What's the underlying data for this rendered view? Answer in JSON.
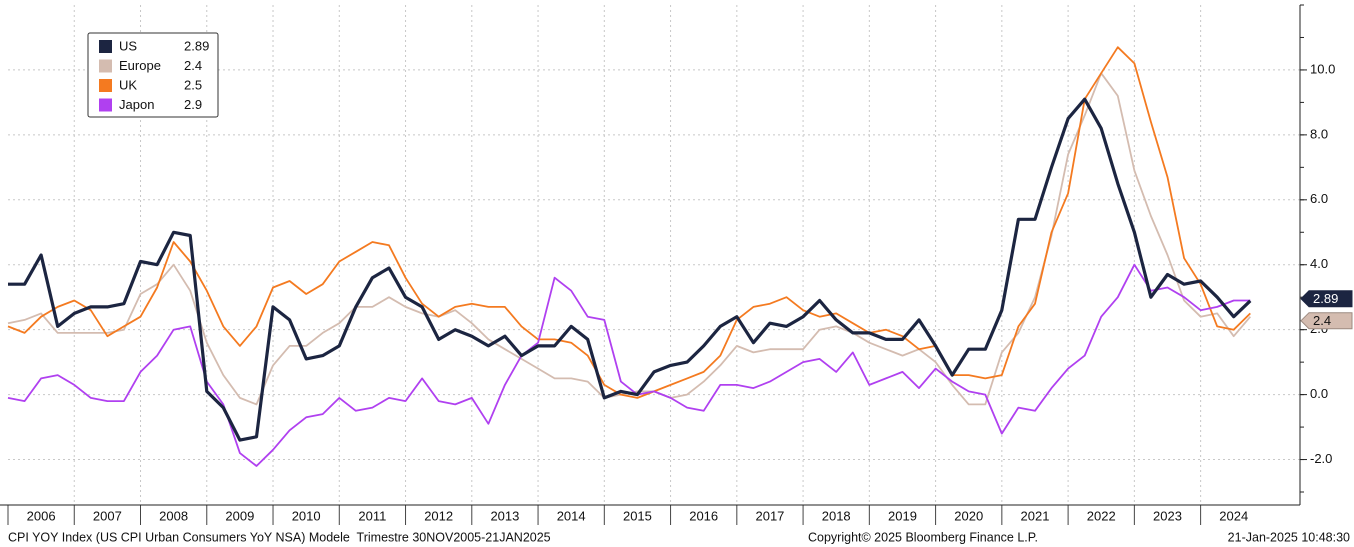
{
  "chart_data": {
    "type": "line",
    "x": [
      2006,
      2006.25,
      2006.5,
      2006.75,
      2007,
      2007.25,
      2007.5,
      2007.75,
      2008,
      2008.25,
      2008.5,
      2008.75,
      2009,
      2009.25,
      2009.5,
      2009.75,
      2010,
      2010.25,
      2010.5,
      2010.75,
      2011,
      2011.25,
      2011.5,
      2011.75,
      2012,
      2012.25,
      2012.5,
      2012.75,
      2013,
      2013.25,
      2013.5,
      2013.75,
      2014,
      2014.25,
      2014.5,
      2014.75,
      2015,
      2015.25,
      2015.5,
      2015.75,
      2016,
      2016.25,
      2016.5,
      2016.75,
      2017,
      2017.25,
      2017.5,
      2017.75,
      2018,
      2018.25,
      2018.5,
      2018.75,
      2019,
      2019.25,
      2019.5,
      2019.75,
      2020,
      2020.25,
      2020.5,
      2020.75,
      2021,
      2021.25,
      2021.5,
      2021.75,
      2022,
      2022.25,
      2022.5,
      2022.75,
      2023,
      2023.25,
      2023.5,
      2023.75,
      2024,
      2024.25,
      2024.5,
      2024.75
    ],
    "series": [
      {
        "name": "US",
        "latest": "2.89",
        "color": "#1c2541",
        "width": 3.2,
        "values": [
          3.4,
          3.4,
          4.3,
          2.1,
          2.5,
          2.7,
          2.7,
          2.8,
          4.1,
          4.0,
          5.0,
          4.9,
          0.1,
          -0.4,
          -1.4,
          -1.3,
          2.7,
          2.3,
          1.1,
          1.2,
          1.5,
          2.7,
          3.6,
          3.9,
          3.0,
          2.7,
          1.7,
          2.0,
          1.8,
          1.5,
          1.8,
          1.2,
          1.5,
          1.5,
          2.1,
          1.7,
          -0.1,
          0.1,
          0.0,
          0.7,
          0.9,
          1.0,
          1.5,
          2.1,
          2.4,
          1.6,
          2.2,
          2.1,
          2.4,
          2.9,
          2.3,
          1.9,
          1.9,
          1.7,
          1.7,
          2.3,
          1.5,
          0.6,
          1.4,
          1.4,
          2.6,
          5.4,
          5.4,
          7.0,
          8.5,
          9.1,
          8.2,
          6.5,
          5.0,
          3.0,
          3.7,
          3.4,
          3.5,
          3.0,
          2.4,
          2.89
        ]
      },
      {
        "name": "Europe",
        "latest": "2.4",
        "color": "#d4bcb0",
        "width": 1.8,
        "values": [
          2.2,
          2.3,
          2.5,
          1.9,
          1.9,
          1.9,
          1.9,
          2.0,
          3.1,
          3.4,
          4.0,
          3.2,
          1.6,
          0.6,
          -0.1,
          -0.3,
          0.9,
          1.5,
          1.5,
          1.9,
          2.2,
          2.7,
          2.7,
          3.0,
          2.7,
          2.5,
          2.4,
          2.6,
          2.2,
          1.7,
          1.4,
          1.1,
          0.8,
          0.5,
          0.5,
          0.4,
          -0.1,
          0.0,
          0.1,
          0.1,
          -0.1,
          0.0,
          0.4,
          0.9,
          1.5,
          1.3,
          1.4,
          1.4,
          1.4,
          2.0,
          2.1,
          1.9,
          1.6,
          1.4,
          1.2,
          1.4,
          1.0,
          0.3,
          -0.3,
          -0.3,
          1.3,
          1.9,
          3.0,
          4.9,
          7.4,
          8.6,
          9.9,
          9.2,
          6.9,
          5.5,
          4.3,
          2.9,
          2.4,
          2.5,
          1.8,
          2.4
        ]
      },
      {
        "name": "UK",
        "latest": "2.5",
        "color": "#f47a20",
        "width": 1.8,
        "values": [
          2.1,
          1.9,
          2.4,
          2.7,
          2.9,
          2.6,
          1.8,
          2.1,
          2.4,
          3.3,
          4.7,
          4.1,
          3.2,
          2.1,
          1.5,
          2.1,
          3.3,
          3.5,
          3.1,
          3.4,
          4.1,
          4.4,
          4.7,
          4.6,
          3.6,
          2.8,
          2.4,
          2.7,
          2.8,
          2.7,
          2.7,
          2.1,
          1.7,
          1.7,
          1.6,
          1.2,
          0.3,
          0.0,
          -0.1,
          0.1,
          0.3,
          0.5,
          0.7,
          1.2,
          2.3,
          2.7,
          2.8,
          3.0,
          2.6,
          2.4,
          2.5,
          2.2,
          1.9,
          2.0,
          1.8,
          1.4,
          1.5,
          0.6,
          0.6,
          0.5,
          0.6,
          2.1,
          2.8,
          5.0,
          6.2,
          9.1,
          9.9,
          10.7,
          10.2,
          8.4,
          6.7,
          4.2,
          3.4,
          2.1,
          2.0,
          2.5
        ]
      },
      {
        "name": "Japon",
        "latest": "2.9",
        "color": "#b040f0",
        "width": 1.8,
        "values": [
          -0.1,
          -0.2,
          0.5,
          0.6,
          0.3,
          -0.1,
          -0.2,
          -0.2,
          0.7,
          1.2,
          2.0,
          2.1,
          0.4,
          -0.3,
          -1.8,
          -2.2,
          -1.7,
          -1.1,
          -0.7,
          -0.6,
          -0.1,
          -0.5,
          -0.4,
          -0.1,
          -0.2,
          0.5,
          -0.2,
          -0.3,
          -0.1,
          -0.9,
          0.3,
          1.2,
          1.6,
          3.6,
          3.2,
          2.4,
          2.3,
          0.4,
          0.0,
          0.1,
          -0.1,
          -0.4,
          -0.5,
          0.3,
          0.3,
          0.2,
          0.4,
          0.7,
          1.0,
          1.1,
          0.7,
          1.3,
          0.3,
          0.5,
          0.7,
          0.2,
          0.8,
          0.4,
          0.1,
          0.0,
          -1.2,
          -0.4,
          -0.5,
          0.2,
          0.8,
          1.2,
          2.4,
          3.0,
          4.0,
          3.2,
          3.3,
          3.0,
          2.6,
          2.7,
          2.9,
          2.9
        ]
      }
    ],
    "xlim": [
      2006,
      2025.5
    ],
    "xticks": [
      2006,
      2007,
      2008,
      2009,
      2010,
      2011,
      2012,
      2013,
      2014,
      2015,
      2016,
      2017,
      2018,
      2019,
      2020,
      2021,
      2022,
      2023,
      2024
    ],
    "ylim": [
      -3.4,
      12
    ],
    "yticks": [
      {
        "value": -2,
        "label": "-2.0"
      },
      {
        "value": 0,
        "label": "0.0"
      },
      {
        "value": 2,
        "label": "2.0"
      },
      {
        "value": 4,
        "label": "4.0"
      },
      {
        "value": 6,
        "label": "6.0"
      },
      {
        "value": 8,
        "label": "8.0"
      },
      {
        "value": 10,
        "label": "10.0"
      }
    ],
    "grid": true,
    "legend": "upper-left",
    "footer": {
      "description": "CPI YOY Index (US CPI Urban Consumers YoY NSA) Modele  Trimestre 30NOV2005-21JAN2025",
      "copyright": "Copyright© 2025 Bloomberg Finance L.P.",
      "timestamp": "21-Jan-2025 10:48:30"
    }
  }
}
